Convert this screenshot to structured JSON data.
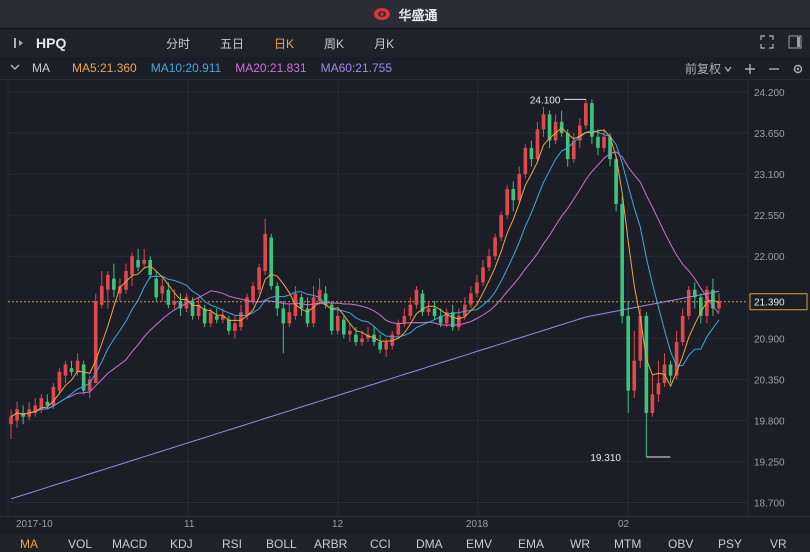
{
  "app": {
    "title": "华盛通"
  },
  "toolbar": {
    "symbol": "HPQ",
    "periods": [
      "分时",
      "五日",
      "日K",
      "周K",
      "月K"
    ],
    "active_period": "日K"
  },
  "indicator_bar": {
    "name": "MA",
    "ma5": "MA5:21.360",
    "ma10": "MA10:20.911",
    "ma20": "MA20:21.831",
    "ma60": "MA60:21.755",
    "adjust": "前复权",
    "colors": {
      "ma5": "#f0a640",
      "ma10": "#3fa9e0",
      "ma20": "#d070d8",
      "ma60": "#a08ae8"
    }
  },
  "chart_data": {
    "type": "candlestick",
    "price_ticks": [
      "24.200",
      "23.650",
      "23.100",
      "22.550",
      "22.000",
      "21.390",
      "20.900",
      "20.350",
      "19.800",
      "19.250",
      "18.700"
    ],
    "current_price": "21.390",
    "annotations": {
      "high": "24.100",
      "low": "19.310"
    },
    "x_labels": [
      "2017-10",
      "11",
      "12",
      "2018",
      "02"
    ],
    "up_color": "#e0484e",
    "down_color": "#3cc47c"
  },
  "indicator_tabs": [
    "MA",
    "VOL",
    "MACD",
    "KDJ",
    "RSI",
    "BOLL",
    "ARBR",
    "CCI",
    "DMA",
    "EMV",
    "EMA",
    "WR",
    "MTM",
    "OBV",
    "PSY",
    "VR"
  ],
  "active_indicator": "MA"
}
